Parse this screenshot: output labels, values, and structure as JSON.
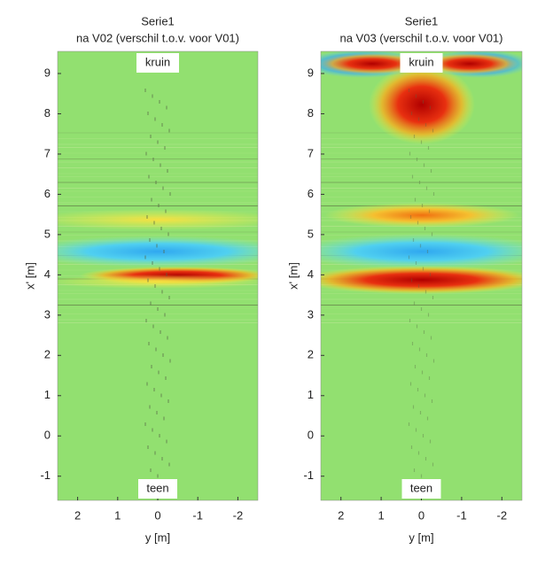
{
  "chart_data": [
    {
      "type": "heatmap",
      "title": "Serie1",
      "subtitle": "na V02 (verschil t.o.v. voor V01)",
      "xlabel": "y [m]",
      "ylabel": "x' [m]",
      "xlim": [
        2.5,
        -2.5
      ],
      "ylim": [
        -1.6,
        9.55
      ],
      "xticks": [
        2,
        1,
        0,
        -1,
        -2
      ],
      "yticks": [
        -1,
        0,
        1,
        2,
        3,
        4,
        5,
        6,
        7,
        8,
        9
      ],
      "annotations": {
        "top": "kruin",
        "bottom": "teen"
      }
    },
    {
      "type": "heatmap",
      "title": "Serie1",
      "subtitle": "na V03 (verschil t.o.v. voor V01)",
      "xlabel": "y [m]",
      "ylabel": "x' [m]",
      "xlim": [
        2.5,
        -2.5
      ],
      "ylim": [
        -1.6,
        9.55
      ],
      "xticks": [
        2,
        1,
        0,
        -1,
        -2
      ],
      "yticks": [
        -1,
        0,
        1,
        2,
        3,
        4,
        5,
        6,
        7,
        8,
        9
      ],
      "annotations": {
        "top": "kruin",
        "bottom": "teen"
      }
    }
  ]
}
